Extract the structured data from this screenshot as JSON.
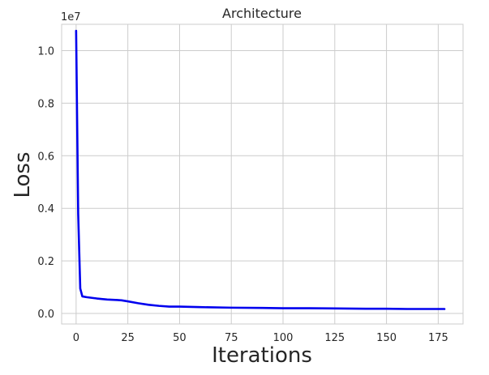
{
  "chart_data": {
    "type": "line",
    "title": "Architecture",
    "xlabel": "Iterations",
    "ylabel": "Loss",
    "y_offset_label": "1e7",
    "xlim": [
      -7,
      187
    ],
    "ylim": [
      -0.04,
      1.1
    ],
    "x_ticks": [
      0,
      25,
      50,
      75,
      100,
      125,
      150,
      175
    ],
    "y_ticks": [
      0.0,
      0.2,
      0.4,
      0.6,
      0.8,
      1.0
    ],
    "x_tick_labels": [
      "0",
      "25",
      "50",
      "75",
      "100",
      "125",
      "150",
      "175"
    ],
    "y_tick_labels": [
      "0.0",
      "0.2",
      "0.4",
      "0.6",
      "0.8",
      "1.0"
    ],
    "grid": true,
    "series": [
      {
        "color": "#0000ee",
        "x": [
          0,
          1,
          2,
          3,
          5,
          8,
          10,
          15,
          20,
          22,
          25,
          30,
          35,
          40,
          45,
          50,
          60,
          75,
          90,
          100,
          110,
          125,
          140,
          150,
          160,
          170,
          178
        ],
        "values": [
          1.075,
          0.38,
          0.095,
          0.065,
          0.062,
          0.059,
          0.057,
          0.053,
          0.051,
          0.05,
          0.046,
          0.039,
          0.033,
          0.029,
          0.026,
          0.026,
          0.024,
          0.022,
          0.021,
          0.02,
          0.02,
          0.019,
          0.018,
          0.018,
          0.017,
          0.017,
          0.017
        ]
      }
    ]
  }
}
